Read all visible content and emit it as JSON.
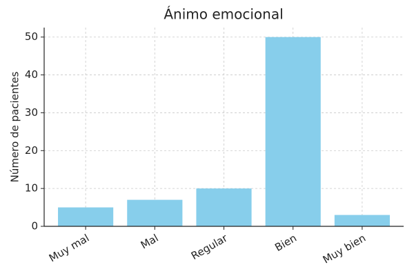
{
  "chart_data": {
    "type": "bar",
    "title": "Ánimo emocional",
    "y_label": "Número de pacientes",
    "categories": [
      "Muy mal",
      "Mal",
      "Regular",
      "Bien",
      "Muy bien"
    ],
    "values": [
      5,
      7,
      10,
      50,
      3
    ],
    "color": "#87ceeb",
    "ylim": [
      0,
      52.5
    ],
    "yticks": [
      0,
      10,
      20,
      30,
      40,
      50
    ],
    "grid": true
  }
}
